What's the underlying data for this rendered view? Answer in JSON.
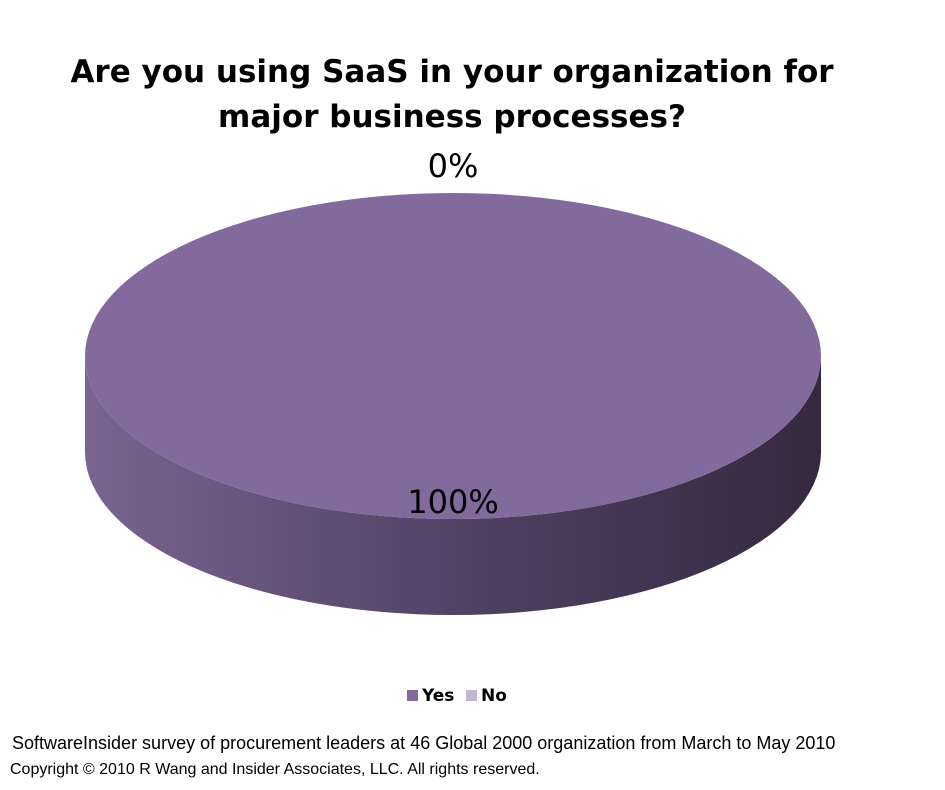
{
  "chart_data": {
    "type": "pie",
    "title_lines": [
      "Are you using SaaS in your organization for",
      "major business processes?"
    ],
    "slices": [
      {
        "label": "Yes",
        "value": 100,
        "data_label": "100%",
        "color": "#836a9c"
      },
      {
        "label": "No",
        "value": 0,
        "data_label": "0%",
        "color": "#c2b6d0"
      }
    ],
    "legend": {
      "position": "bottom",
      "entries": [
        "Yes",
        "No"
      ]
    },
    "style": "3d"
  },
  "footer": {
    "survey_note": "SoftwareInsider survey of procurement leaders at 46 Global 2000 organization from March to May 2010",
    "copyright": "Copyright © 2010 R Wang and Insider Associates, LLC. All rights reserved."
  }
}
